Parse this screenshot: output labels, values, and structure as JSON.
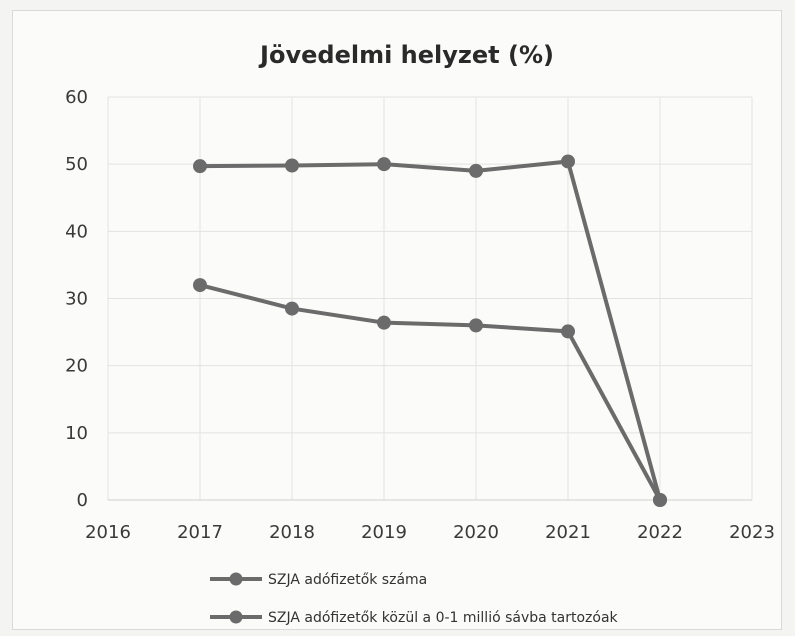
{
  "chart_data": {
    "type": "line",
    "title": "Jövedelmi helyzet (%)",
    "xlabel": "",
    "ylabel": "",
    "x": [
      2017,
      2018,
      2019,
      2020,
      2021,
      2022
    ],
    "xlim": [
      2016,
      2023
    ],
    "xticks": [
      "2016",
      "2017",
      "2018",
      "2019",
      "2020",
      "2021",
      "2022",
      "2023"
    ],
    "ylim": [
      0,
      60
    ],
    "yticks": [
      "0",
      "10",
      "20",
      "30",
      "40",
      "50",
      "60"
    ],
    "grid": true,
    "legend_position": "bottom",
    "series_color": "#6b6b6b",
    "series": [
      {
        "name": "SZJA adófizetők száma",
        "values": [
          49.7,
          49.8,
          50.0,
          49.0,
          50.4,
          0
        ]
      },
      {
        "name": "SZJA adófizetők közül a 0-1 millió sávba tartozóak",
        "values": [
          32.0,
          28.5,
          26.4,
          26.0,
          25.1,
          0
        ]
      }
    ]
  }
}
